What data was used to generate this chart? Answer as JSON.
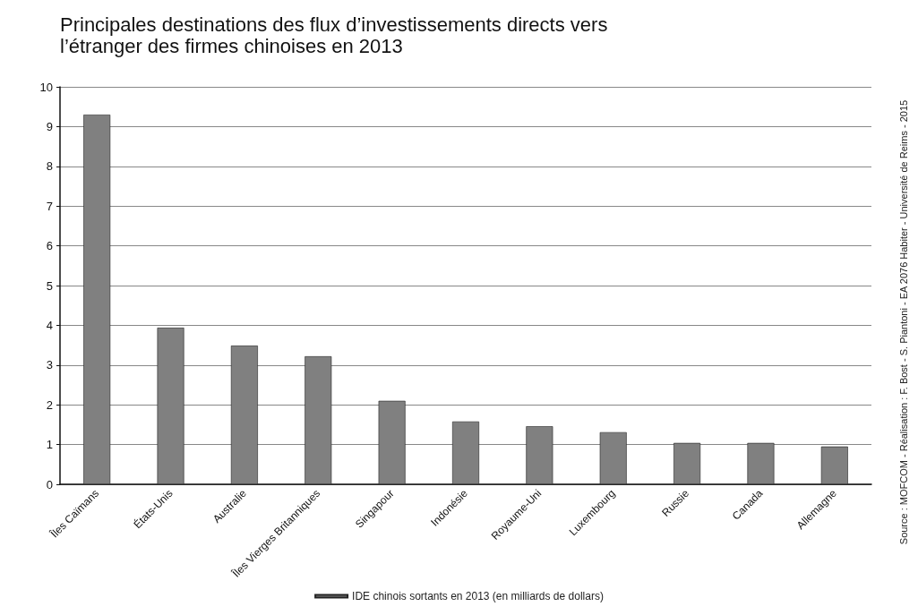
{
  "chart_data": {
    "type": "bar",
    "title": "Principales destinations des flux d’investissements directs vers l’étranger des firmes chinoises en 2013",
    "categories": [
      "Îles Caïmans",
      "États-Unis",
      "Australie",
      "Îles Vierges Britanniques",
      "Singapour",
      "Indonésie",
      "Royaume-Uni",
      "Luxembourg",
      "Russie",
      "Canada",
      "Allemagne"
    ],
    "series": [
      {
        "name": "IDE chinois sortants en 2013 (en milliards de dollars)",
        "color": "#808080",
        "values": [
          9.3,
          3.94,
          3.49,
          3.22,
          2.1,
          1.58,
          1.46,
          1.31,
          1.04,
          1.04,
          0.95
        ]
      }
    ],
    "ylim": [
      0,
      10
    ],
    "yticks": [
      0,
      1,
      2,
      3,
      4,
      5,
      6,
      7,
      8,
      9,
      10
    ],
    "grid": "y",
    "legend": "bottom",
    "annotations": [
      "Source : MOFCOM - Réalisation : F. Bost - S. Piantoni - EA 2076 Habiter - Université de Reims - 2015"
    ]
  }
}
